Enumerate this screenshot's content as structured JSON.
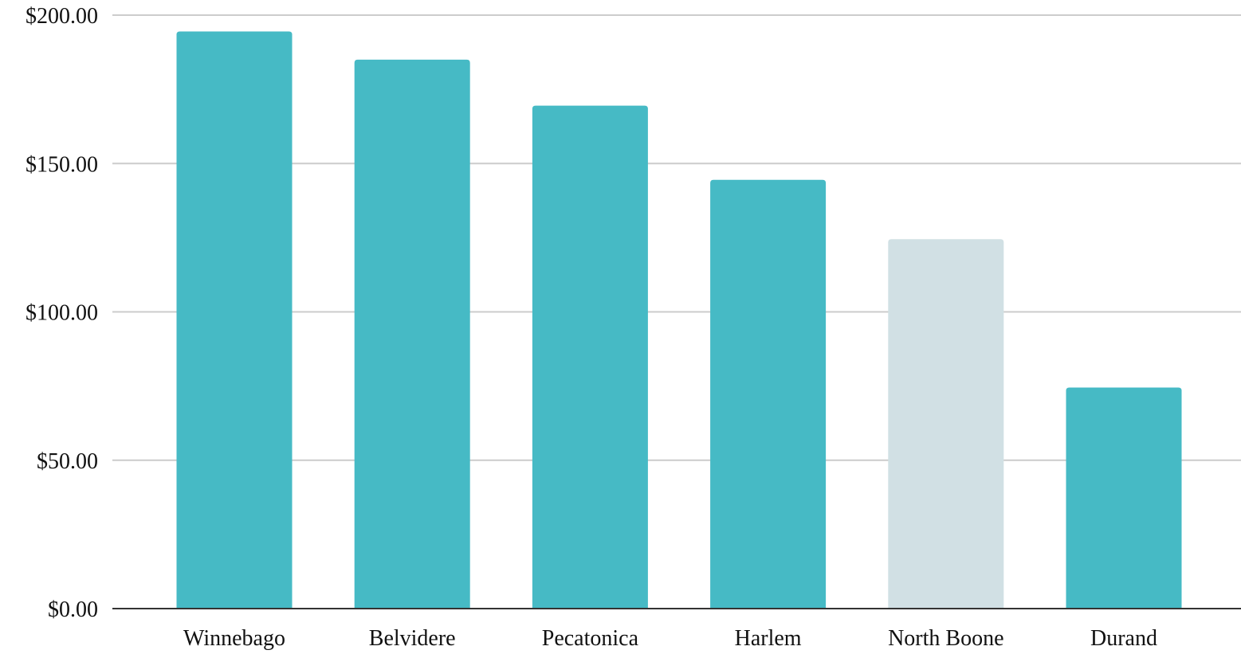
{
  "chart_data": {
    "type": "bar",
    "title": "",
    "xlabel": "",
    "ylabel": "",
    "categories": [
      "Winnebago",
      "Belvidere",
      "Pecatonica",
      "Harlem",
      "North Boone",
      "Durand"
    ],
    "values": [
      194.5,
      185,
      169.5,
      144.5,
      124.5,
      74.5
    ],
    "ylim": [
      0,
      200
    ],
    "yticks": [
      0,
      50,
      100,
      150,
      200
    ],
    "ytick_labels": [
      "$0.00",
      "$50.00",
      "$100.00",
      "$150.00",
      "$200.00"
    ],
    "grid": true,
    "legend": "none",
    "bar_colors": [
      "#46bac5",
      "#46bac5",
      "#46bac5",
      "#46bac5",
      "#d1e0e4",
      "#46bac5"
    ]
  },
  "colors": {
    "gridline": "#cccccc",
    "axis": "#333333",
    "text": "#111111"
  }
}
